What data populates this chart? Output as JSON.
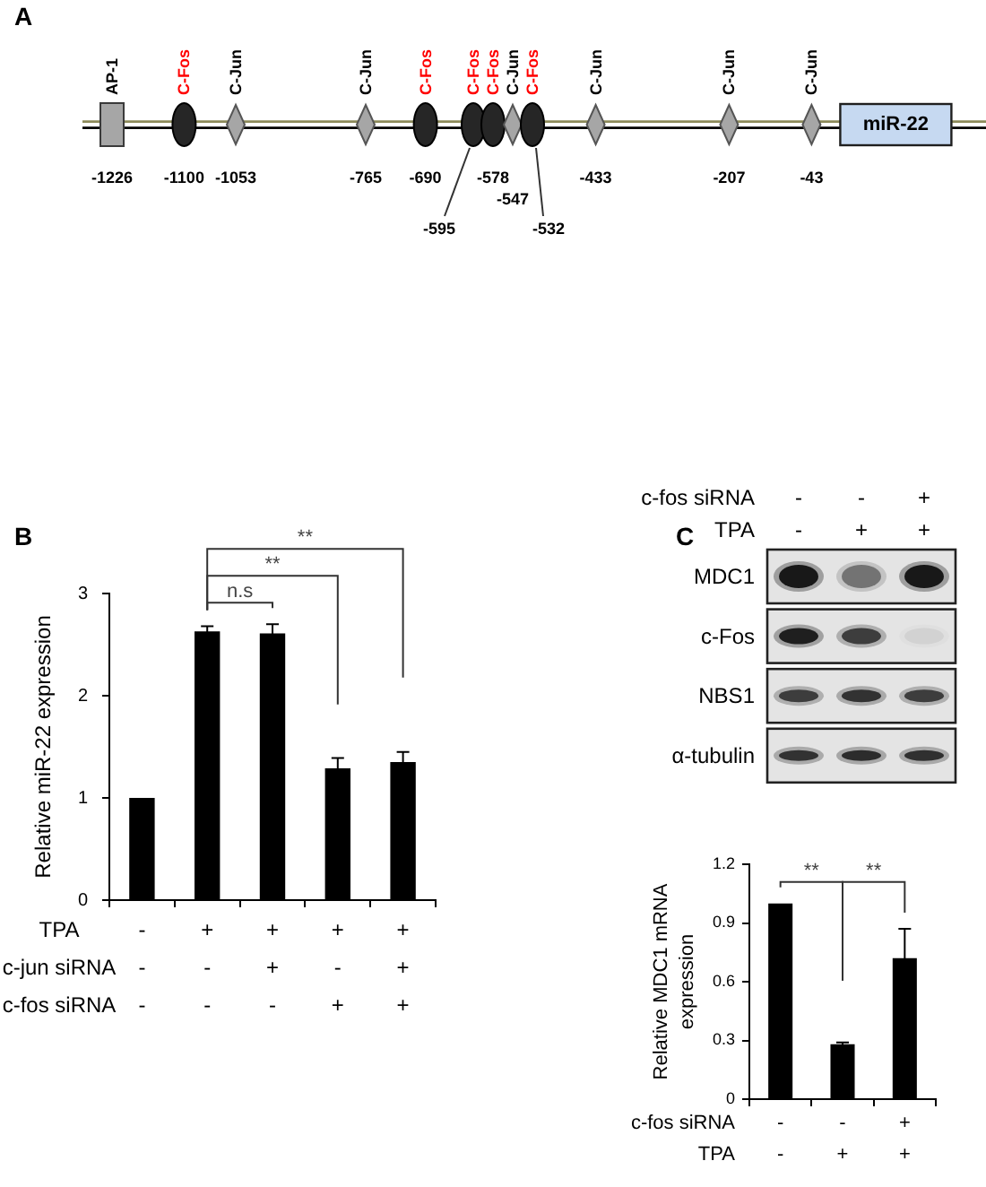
{
  "chart_data": [
    {
      "type": "other",
      "title": "A",
      "annotations": [
        "AP-1",
        "C-Fos",
        "C-Jun",
        "C-Jun",
        "C-Fos",
        "C-Fos",
        "C-Fos",
        "C-Jun",
        "C-Fos",
        "C-Jun",
        "C-Jun",
        "C-Jun",
        "-1226",
        "-1100",
        "-1053",
        "-765",
        "-690",
        "-595",
        "-578",
        "-547",
        "-532",
        "-433",
        "-207",
        "-43",
        "miR-22"
      ]
    },
    {
      "type": "bar",
      "title": "B",
      "categories": [
        "-\n-\n-",
        "+\n-\n-",
        "+\n+\n-",
        "+\n-\n+",
        "+\n+\n+"
      ],
      "xlabel": "TPA\nc-jun siRNA\nc-fos siRNA",
      "ylabel": "Relative miR-22 expression",
      "values": [
        1.0,
        2.63,
        2.61,
        1.29,
        1.35
      ],
      "errors": [
        null,
        0.05,
        0.09,
        0.1,
        0.1
      ],
      "color": "#000000",
      "ylim": [
        0,
        3
      ],
      "yticks": [
        0,
        1,
        2,
        3
      ],
      "annotations": [
        "n.s",
        "**",
        "**"
      ]
    },
    {
      "type": "other",
      "title": "C",
      "categories": [
        "-\n-",
        "-\n+",
        "+\n+"
      ],
      "xlabel": "c-fos siRNA\nTPA",
      "y_categories": [
        "MDC1",
        "c-Fos",
        "NBS1",
        "α-tubulin"
      ]
    },
    {
      "type": "bar",
      "categories": [
        "-\n-",
        "-\n+",
        "+\n+"
      ],
      "xlabel": "c-fos siRNA\nTPA",
      "ylabel": "Relative MDC1 mRNA\nexpression",
      "values": [
        1.0,
        0.28,
        0.72
      ],
      "errors": [
        null,
        0.01,
        0.15
      ],
      "color": "#000000",
      "ylim": [
        0,
        1.2
      ],
      "yticks": [
        0,
        0.3,
        0.6,
        0.9,
        1.2
      ],
      "annotations": [
        "**",
        "**"
      ]
    }
  ]
}
